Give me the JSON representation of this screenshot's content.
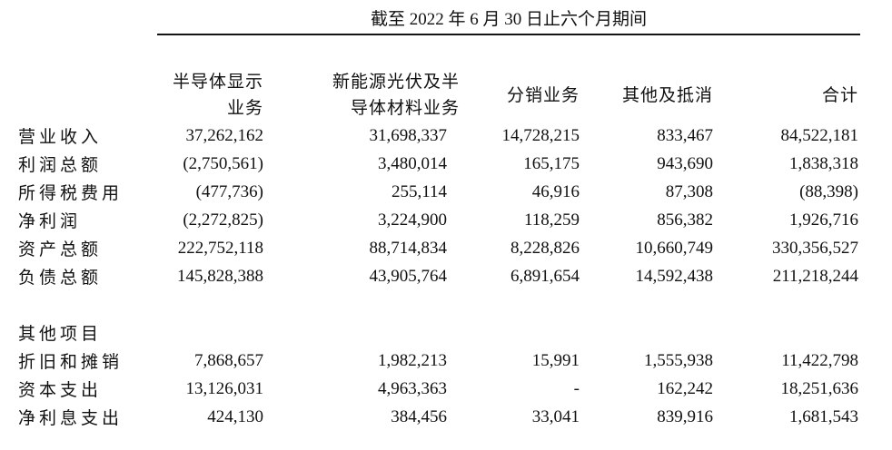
{
  "table": {
    "title": "截至 2022 年 6 月 30 日止六个月期间",
    "column_headers": [
      {
        "line1": "半导体显示",
        "line2": "业务"
      },
      {
        "line1": "新能源光伏及半",
        "line2": "导体材料业务"
      },
      {
        "label": "分销业务"
      },
      {
        "label": "其他及抵消"
      },
      {
        "label": "合计"
      }
    ],
    "rows": [
      {
        "label": "营业收入",
        "values": [
          "37,262,162",
          "31,698,337",
          "14,728,215",
          "833,467",
          "84,522,181"
        ]
      },
      {
        "label": "利润总额",
        "values": [
          "(2,750,561)",
          "3,480,014",
          "165,175",
          "943,690",
          "1,838,318"
        ]
      },
      {
        "label": "所得税费用",
        "values": [
          "(477,736)",
          "255,114",
          "46,916",
          "87,308",
          "(88,398)"
        ]
      },
      {
        "label": "净利润",
        "values": [
          "(2,272,825)",
          "3,224,900",
          "118,259",
          "856,382",
          "1,926,716"
        ]
      },
      {
        "label": "资产总额",
        "values": [
          "222,752,118",
          "88,714,834",
          "8,228,826",
          "10,660,749",
          "330,356,527"
        ]
      },
      {
        "label": "负债总额",
        "values": [
          "145,828,388",
          "43,905,764",
          "6,891,654",
          "14,592,438",
          "211,218,244"
        ]
      },
      {
        "label": "",
        "values": [
          "",
          "",
          "",
          "",
          ""
        ],
        "spacer": true
      },
      {
        "label": "其他项目",
        "values": [
          "",
          "",
          "",
          "",
          ""
        ],
        "section": true
      },
      {
        "label": "折旧和摊销",
        "values": [
          "7,868,657",
          "1,982,213",
          "15,991",
          "1,555,938",
          "11,422,798"
        ]
      },
      {
        "label": "资本支出",
        "values": [
          "13,126,031",
          "4,963,363",
          "-",
          "162,242",
          "18,251,636"
        ]
      },
      {
        "label": "净利息支出",
        "values": [
          "424,130",
          "384,456",
          "33,041",
          "839,916",
          "1,681,543"
        ]
      }
    ]
  }
}
